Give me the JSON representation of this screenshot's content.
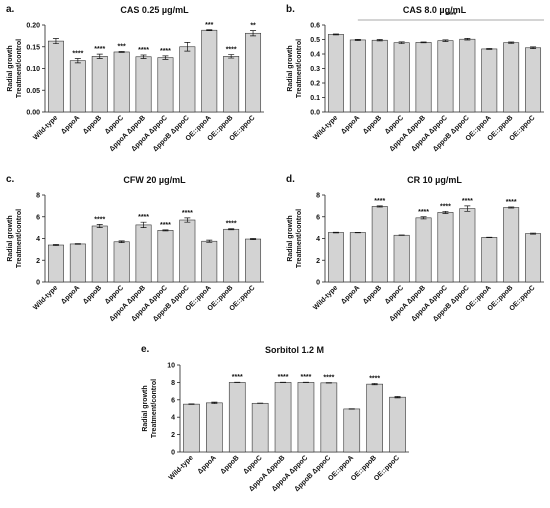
{
  "chart_data": [
    {
      "type": "bar",
      "panel": "a.",
      "title": "CAS 0.25 µg/mL",
      "y_label": [
        "Radial growth",
        "Treatment/control"
      ],
      "color": "#d3d3d3",
      "categories": [
        "Wild-type",
        "ΔppoA",
        "ΔppoB",
        "ΔppoC",
        "ΔppoA ΔppoB",
        "ΔppoA ΔppoC",
        "ΔppoB ΔppoC",
        "OE::ppoA",
        "OE::ppoB",
        "OE::ppoC"
      ],
      "values": [
        0.163,
        0.118,
        0.128,
        0.138,
        0.127,
        0.125,
        0.15,
        0.188,
        0.128,
        0.181
      ],
      "errors": [
        0.006,
        0.005,
        0.005,
        0.001,
        0.004,
        0.004,
        0.01,
        0.001,
        0.004,
        0.006
      ],
      "significance": [
        null,
        "****",
        "****",
        "***",
        "****",
        "****",
        null,
        "***",
        "****",
        "**"
      ],
      "ylim": [
        0,
        0.2
      ],
      "yticks": [
        {
          "value": 0,
          "label": "0.00"
        },
        0.05,
        {
          "value": 0.1,
          "label": "0.10"
        },
        0.15,
        {
          "value": 0.2,
          "label": "0.20"
        }
      ]
    },
    {
      "type": "bar",
      "panel": "b.",
      "title": "CAS 8.0 µg/mL",
      "y_label": [
        "Radial growth",
        "Treatment/control"
      ],
      "color": "#d3d3d3",
      "categories": [
        "Wild-type",
        "ΔppoA",
        "ΔppoB",
        "ΔppoC",
        "ΔppoA ΔppoB",
        "ΔppoA ΔppoC",
        "ΔppoB ΔppoC",
        "OE::ppoA",
        "OE::ppoB",
        "OE::ppoC"
      ],
      "values": [
        0.535,
        0.497,
        0.495,
        0.478,
        0.48,
        0.492,
        0.502,
        0.435,
        0.478,
        0.443
      ],
      "errors": [
        0.003,
        0.004,
        0.005,
        0.006,
        0.003,
        0.006,
        0.006,
        0.003,
        0.005,
        0.006
      ],
      "annotation": "****",
      "ylim": [
        0,
        0.6
      ],
      "yticks": [
        {
          "value": 0,
          "label": "0.0"
        },
        0.1,
        0.2,
        0.3,
        0.4,
        0.5,
        0.6
      ]
    },
    {
      "type": "bar",
      "panel": "c.",
      "title": "CFW 20 µg/mL",
      "y_label": [
        "Radial growth",
        "Treatment/control"
      ],
      "color": "#d3d3d3",
      "categories": [
        "Wild-type",
        "ΔppoA",
        "ΔppoB",
        "ΔppoC",
        "ΔppoA ΔppoB",
        "ΔppoA ΔppoC",
        "ΔppoB ΔppoC",
        "OE::ppoA",
        "OE::ppoB",
        "OE::ppoC"
      ],
      "values": [
        3.4,
        3.5,
        5.15,
        3.7,
        5.25,
        4.75,
        5.7,
        3.75,
        4.85,
        3.95
      ],
      "errors": [
        0.05,
        0.03,
        0.15,
        0.08,
        0.25,
        0.05,
        0.2,
        0.1,
        0.05,
        0.05
      ],
      "significance": [
        null,
        null,
        "****",
        null,
        "****",
        "****",
        "****",
        null,
        "****",
        null
      ],
      "ylim": [
        0,
        8
      ],
      "yticks": [
        0,
        2,
        4,
        6,
        8
      ]
    },
    {
      "type": "bar",
      "panel": "d.",
      "title": "CR 10 µg/mL",
      "y_label": [
        "Radial growth",
        "Treatment/control"
      ],
      "color": "#d3d3d3",
      "categories": [
        "Wild-type",
        "ΔppoA",
        "ΔppoB",
        "ΔppoC",
        "ΔppoA ΔppoB",
        "ΔppoA ΔppoC",
        "ΔppoB ΔppoC",
        "OE::ppoA",
        "OE::ppoB",
        "OE::ppoC"
      ],
      "values": [
        4.55,
        4.55,
        6.95,
        4.3,
        5.9,
        6.4,
        6.75,
        4.1,
        6.85,
        4.45
      ],
      "errors": [
        0.03,
        0.02,
        0.05,
        0.02,
        0.1,
        0.1,
        0.25,
        0.02,
        0.05,
        0.05
      ],
      "significance": [
        null,
        null,
        "****",
        null,
        "****",
        "****",
        "****",
        null,
        "****",
        null
      ],
      "ylim": [
        0,
        8
      ],
      "yticks": [
        0,
        2,
        4,
        6,
        8
      ]
    },
    {
      "type": "bar",
      "panel": "e.",
      "title": "Sorbitol 1.2 M",
      "y_label": [
        "Radial growth",
        "Treatment/control"
      ],
      "color": "#d3d3d3",
      "categories": [
        "Wild-type",
        "ΔppoA",
        "ΔppoB",
        "ΔppoC",
        "ΔppoA ΔppoB",
        "ΔppoA ΔppoC",
        "ΔppoB ΔppoC",
        "OE::ppoA",
        "OE::ppoB",
        "OE::ppoC"
      ],
      "values": [
        5.5,
        5.65,
        8.0,
        5.6,
        8.0,
        8.0,
        7.95,
        4.95,
        7.8,
        6.3
      ],
      "errors": [
        0.03,
        0.08,
        0.02,
        0.02,
        0.02,
        0.02,
        0.02,
        0.02,
        0.08,
        0.08
      ],
      "significance": [
        null,
        null,
        "****",
        null,
        "****",
        "****",
        "****",
        null,
        "****",
        null
      ],
      "ylim": [
        0,
        10
      ],
      "yticks": [
        0,
        2,
        4,
        6,
        8,
        10
      ]
    }
  ]
}
